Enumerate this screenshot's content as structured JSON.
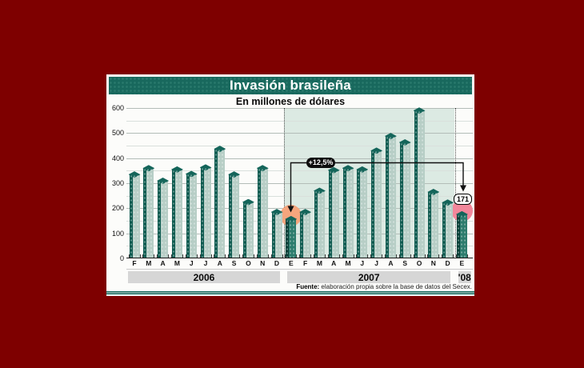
{
  "panel": {
    "title": "Invasión brasileña",
    "subtitle": "En millones de dólares",
    "source_label": "Fuente:",
    "source_text": " elaboración propia sobre la base de datos del Secex."
  },
  "annotations": {
    "pct_label": "+12,5%",
    "value_label": "171"
  },
  "chart_data": {
    "type": "bar",
    "title": "Invasión brasileña",
    "subtitle": "En millones de dólares",
    "ylabel": "Millones de dólares",
    "ylim": [
      0,
      600
    ],
    "yticks": [
      0,
      100,
      200,
      300,
      400,
      500,
      600
    ],
    "grid": "horizontal major every 100, minor every 50",
    "legend": "none",
    "categories": [
      "F",
      "M",
      "A",
      "M",
      "J",
      "J",
      "A",
      "S",
      "O",
      "N",
      "D",
      "E",
      "F",
      "M",
      "A",
      "M",
      "J",
      "J",
      "A",
      "S",
      "O",
      "N",
      "D",
      "E"
    ],
    "values": [
      330,
      355,
      305,
      350,
      332,
      358,
      432,
      330,
      220,
      355,
      180,
      152,
      180,
      265,
      347,
      355,
      350,
      425,
      483,
      458,
      585,
      260,
      218,
      171
    ],
    "year_groups": [
      {
        "label": "2006",
        "count": 11
      },
      {
        "label": "2007",
        "count": 12
      },
      {
        "label": "'08",
        "count": 1
      }
    ],
    "highlighted_indices": [
      11,
      23
    ],
    "shaded_region_indices": [
      11,
      22
    ],
    "annotation": {
      "from_index": 11,
      "from_value": 152,
      "to_index": 23,
      "to_value": 171,
      "label": "+12,5%",
      "to_value_label": "171"
    }
  },
  "colors": {
    "background": "#7e0000",
    "panel": "#fcfcfa",
    "title_bar": "#18685d",
    "title_bar_dots": "#2a7a6d",
    "grid_major": "#b3bdb8",
    "grid_minor": "#d9e0dc",
    "shaded_region": "#dceae3",
    "bar_face": "#b7cec6",
    "bar_side": "#0e5b50",
    "bar_cap": "#14655a",
    "bar_face_highlight": "#2c7c6d",
    "bar_side_highlight": "#073f37",
    "highlight_circle_from": "#f5a57d",
    "highlight_circle_to": "#f2879b",
    "year_band": "#d6d6d6",
    "divider": "#17695e"
  }
}
